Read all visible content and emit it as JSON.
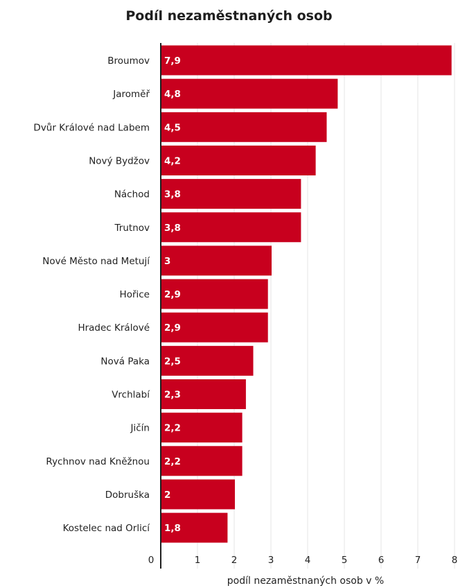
{
  "chart_data": {
    "type": "bar",
    "orientation": "horizontal",
    "title": "Podíl nezaměstnaných osob",
    "xlabel": "podíl nezaměstnaných osob v %",
    "ylabel": "",
    "categories": [
      "Broumov",
      "Jaroměř",
      "Dvůr Králové nad Labem",
      "Nový Bydžov",
      "Náchod",
      "Trutnov",
      "Nové Město nad Metují",
      "Hořice",
      "Hradec Králové",
      "Nová Paka",
      "Vrchlabí",
      "Jičín",
      "Rychnov nad Kněžnou",
      "Dobruška",
      "Kostelec nad Orlicí"
    ],
    "values": [
      7.9,
      4.8,
      4.5,
      4.2,
      3.8,
      3.8,
      3,
      2.9,
      2.9,
      2.5,
      2.3,
      2.2,
      2.2,
      2,
      1.8
    ],
    "value_labels": [
      "7,9",
      "4,8",
      "4,5",
      "4,2",
      "3,8",
      "3,8",
      "3",
      "2,9",
      "2,9",
      "2,5",
      "2,3",
      "2,2",
      "2,2",
      "2",
      "1,8"
    ],
    "xlim": [
      0,
      8
    ],
    "xticks": [
      "0",
      "1",
      "2",
      "3",
      "4",
      "5",
      "6",
      "7",
      "8"
    ],
    "grid": true,
    "legend": "none",
    "bar_color": "#c8001e",
    "grid_color": "#e6e6e6",
    "axis_color": "#1e1e1e"
  }
}
